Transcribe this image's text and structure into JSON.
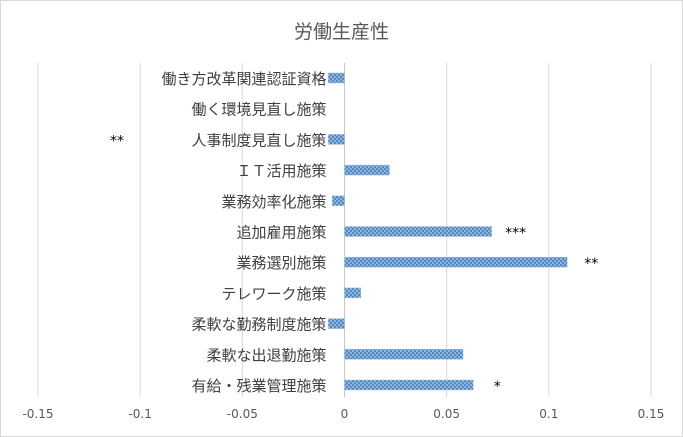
{
  "chart_data": {
    "type": "bar",
    "orientation": "horizontal",
    "title": "労働生産性",
    "xlabel": "",
    "ylabel": "",
    "xlim": [
      -0.15,
      0.15
    ],
    "xticks": [
      "-0.15",
      "-0.1",
      "-0.05",
      "0",
      "0.05",
      "0.1",
      "0.15"
    ],
    "tick_values": [
      -0.15,
      -0.1,
      -0.05,
      0,
      0.05,
      0.1,
      0.15
    ],
    "grid": true,
    "legend": "none",
    "bar_fill": "#9dc3e6",
    "bar_pattern_color": "#4a7ebb",
    "categories": [
      "働き方改革関連認証資格",
      "働く環境見直し施策",
      "人事制度見直し施策",
      "ＩＴ活用施策",
      "業務効率化施策",
      "追加雇用施策",
      "業務選別施策",
      "テレワーク施策",
      "柔軟な勤務制度施策",
      "柔軟な出退勤施策",
      "有給・残業管理施策"
    ],
    "values": [
      -0.008,
      0.0,
      -0.008,
      0.022,
      -0.006,
      0.072,
      0.109,
      0.008,
      -0.008,
      0.058,
      0.063
    ],
    "annotations": [
      "",
      "",
      "**",
      "",
      "",
      "***",
      "**",
      "",
      "",
      "",
      "*"
    ]
  }
}
